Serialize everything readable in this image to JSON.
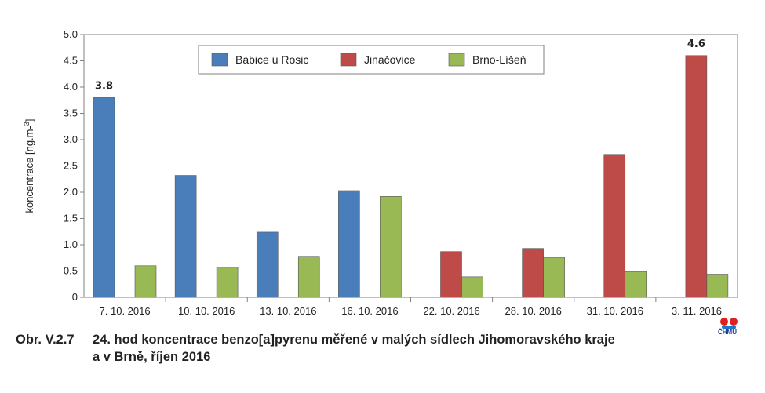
{
  "chart_data": {
    "type": "bar",
    "ylabel": "koncentrace [ng.m-3]",
    "ylim": [
      0,
      5
    ],
    "yticks": [
      "0",
      "0.5",
      "1.0",
      "1.5",
      "2.0",
      "2.5",
      "3.0",
      "3.5",
      "4.0",
      "4.5",
      "5.0"
    ],
    "categories": [
      "7. 10. 2016",
      "10. 10. 2016",
      "13. 10. 2016",
      "16. 10. 2016",
      "22. 10. 2016",
      "28. 10. 2016",
      "31. 10. 2016",
      "3. 11. 2016"
    ],
    "series": [
      {
        "name": "Babice u Rosic",
        "color": "#4a7ebb",
        "values": [
          3.8,
          2.32,
          1.24,
          2.03,
          null,
          null,
          null,
          null
        ]
      },
      {
        "name": "Jinačovice",
        "color": "#be4b48",
        "values": [
          null,
          null,
          null,
          null,
          0.87,
          0.93,
          2.72,
          4.6
        ]
      },
      {
        "name": "Brno-Líšeň",
        "color": "#98b954",
        "values": [
          0.6,
          0.57,
          0.78,
          1.92,
          0.39,
          0.76,
          0.49,
          0.44
        ]
      }
    ],
    "data_labels": [
      {
        "series": 0,
        "index": 0,
        "text": "3.8"
      },
      {
        "series": 1,
        "index": 7,
        "text": "4.6"
      }
    ],
    "legend_position": "top-center",
    "grid": false
  },
  "caption": {
    "number": "Obr. V.2.7",
    "line1": "24. hod koncentrace benzo[a]pyrenu měřené v malých sídlech Jihomoravského kraje",
    "line2": "a v Brně, říjen 2016"
  },
  "logo": {
    "text": "ČHMÚ",
    "colors": {
      "dots": "#e02020",
      "wave": "#1e78c8",
      "text": "#1a3d8f"
    }
  }
}
